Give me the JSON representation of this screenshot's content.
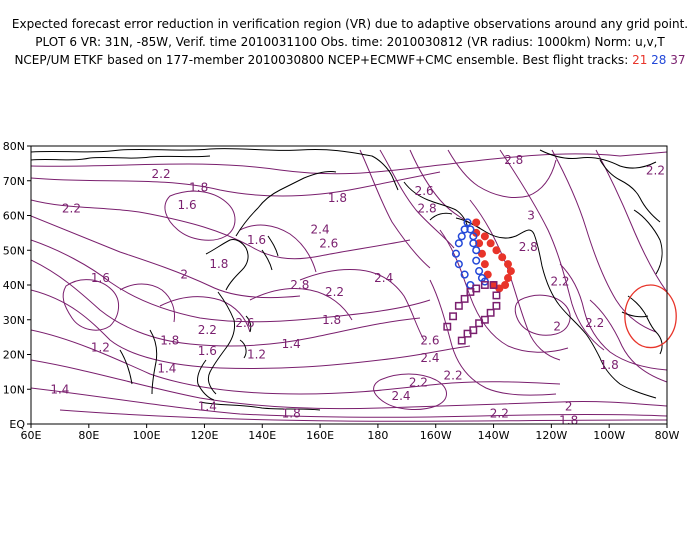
{
  "header": {
    "line1": "Expected forecast error reduction in verification region (VR) due to adaptive observations around any grid point.",
    "line2": "PLOT 6 VR: 31N, -85W, Verif. time 2010031100 Obs. time: 2010030812 (VR radius: 1000km) Norm: u,v,T",
    "line3_prefix": "NCEP/UM ETKF based on 177-member 2010030800 NCEP+ECMWF+CMC ensemble. Best flight tracks:",
    "track1": "21",
    "track2": "28",
    "track3": "37"
  },
  "axes": {
    "lon_labels": [
      "60E",
      "80E",
      "100E",
      "120E",
      "140E",
      "160E",
      "180",
      "160W",
      "140W",
      "120W",
      "100W",
      "80W"
    ],
    "lat_labels": [
      "EQ",
      "10N",
      "20N",
      "30N",
      "40N",
      "50N",
      "60N",
      "70N",
      "80N"
    ]
  },
  "contour_labels": [
    {
      "text": "2.2",
      "lon": 105,
      "lat": 72
    },
    {
      "text": "1.8",
      "lon": 118,
      "lat": 68
    },
    {
      "text": "2.2",
      "lon": 74,
      "lat": 62
    },
    {
      "text": "1.6",
      "lon": 114,
      "lat": 63
    },
    {
      "text": "1.6",
      "lon": 84,
      "lat": 42
    },
    {
      "text": "2",
      "lon": 113,
      "lat": 43
    },
    {
      "text": "1.8",
      "lon": 125,
      "lat": 46
    },
    {
      "text": "1.6",
      "lon": 138,
      "lat": 53
    },
    {
      "text": "2.4",
      "lon": 160,
      "lat": 56
    },
    {
      "text": "2.6",
      "lon": 163,
      "lat": 52
    },
    {
      "text": "2.8",
      "lon": 153,
      "lat": 40
    },
    {
      "text": "1.8",
      "lon": 166,
      "lat": 65
    },
    {
      "text": "2.2",
      "lon": 165,
      "lat": 38
    },
    {
      "text": "2.4",
      "lon": 182,
      "lat": 42
    },
    {
      "text": "1.8",
      "lon": 164,
      "lat": 30
    },
    {
      "text": "2.2",
      "lon": 121,
      "lat": 27
    },
    {
      "text": "2.6",
      "lon": 134,
      "lat": 29
    },
    {
      "text": "1.8",
      "lon": 108,
      "lat": 24
    },
    {
      "text": "1.6",
      "lon": 121,
      "lat": 21
    },
    {
      "text": "1.2",
      "lon": 138,
      "lat": 20
    },
    {
      "text": "1.4",
      "lon": 150,
      "lat": 23
    },
    {
      "text": "1.2",
      "lon": 84,
      "lat": 22
    },
    {
      "text": "1.4",
      "lon": 107,
      "lat": 16
    },
    {
      "text": "1.4",
      "lon": 70,
      "lat": 10
    },
    {
      "text": "1.4",
      "lon": 121,
      "lat": 5
    },
    {
      "text": "1.8",
      "lon": 150,
      "lat": 3
    },
    {
      "text": "2.6",
      "lon": -164,
      "lat": 67
    },
    {
      "text": "2.8",
      "lon": -163,
      "lat": 62
    },
    {
      "text": "2.8",
      "lon": -133,
      "lat": 76
    },
    {
      "text": "3",
      "lon": -127,
      "lat": 60
    },
    {
      "text": "2.8",
      "lon": -128,
      "lat": 51
    },
    {
      "text": "2.2",
      "lon": -117,
      "lat": 41
    },
    {
      "text": "2.2",
      "lon": -105,
      "lat": 29
    },
    {
      "text": "2",
      "lon": -118,
      "lat": 28
    },
    {
      "text": "2.6",
      "lon": -162,
      "lat": 24
    },
    {
      "text": "2.4",
      "lon": -162,
      "lat": 19
    },
    {
      "text": "2.2",
      "lon": -154,
      "lat": 14
    },
    {
      "text": "2.2",
      "lon": -166,
      "lat": 12
    },
    {
      "text": "2.4",
      "lon": -172,
      "lat": 8
    },
    {
      "text": "2.2",
      "lon": -138,
      "lat": 3
    },
    {
      "text": "2",
      "lon": -114,
      "lat": 5
    },
    {
      "text": "1.8",
      "lon": -114,
      "lat": 1
    },
    {
      "text": "1.8",
      "lon": -100,
      "lat": 17
    },
    {
      "text": "2.2",
      "lon": -84,
      "lat": 73
    }
  ],
  "flight_tracks": [
    {
      "label": "21",
      "color": "#e8342a",
      "marker": "circle-filled",
      "points": [
        [
          -140,
          40
        ],
        [
          -142,
          43
        ],
        [
          -143,
          46
        ],
        [
          -144,
          49
        ],
        [
          -145,
          52
        ],
        [
          -146,
          55
        ],
        [
          -146,
          58
        ],
        [
          -143,
          54
        ],
        [
          -141,
          52
        ],
        [
          -139,
          50
        ],
        [
          -137,
          48
        ],
        [
          -135,
          46
        ],
        [
          -134,
          44
        ],
        [
          -135,
          42
        ],
        [
          -136,
          40
        ],
        [
          -138,
          39
        ]
      ]
    },
    {
      "label": "28",
      "color": "#2348d8",
      "marker": "circle-open",
      "points": [
        [
          -148,
          40
        ],
        [
          -150,
          43
        ],
        [
          -152,
          46
        ],
        [
          -153,
          49
        ],
        [
          -152,
          52
        ],
        [
          -151,
          54
        ],
        [
          -150,
          56
        ],
        [
          -149,
          58
        ],
        [
          -148,
          56
        ],
        [
          -147,
          54
        ],
        [
          -147,
          52
        ],
        [
          -146,
          50
        ],
        [
          -146,
          47
        ],
        [
          -145,
          44
        ],
        [
          -144,
          42
        ],
        [
          -143,
          41
        ]
      ]
    },
    {
      "label": "37",
      "color": "#7a1f6e",
      "marker": "square-open",
      "points": [
        [
          -156,
          28
        ],
        [
          -154,
          31
        ],
        [
          -152,
          34
        ],
        [
          -150,
          36
        ],
        [
          -148,
          38
        ],
        [
          -146,
          39
        ],
        [
          -143,
          40
        ],
        [
          -140,
          40
        ],
        [
          -139,
          37
        ],
        [
          -139,
          34
        ],
        [
          -141,
          32
        ],
        [
          -143,
          30
        ],
        [
          -145,
          29
        ],
        [
          -147,
          27
        ],
        [
          -149,
          26
        ],
        [
          -151,
          24
        ]
      ]
    }
  ],
  "verification_region": {
    "lat": 31,
    "lon": -85,
    "radius_km": 1000,
    "color": "#e8342a"
  },
  "colors": {
    "contour": "#7a1f6e",
    "coast": "#000000",
    "red": "#e8342a",
    "blue": "#2348d8",
    "purple": "#7a1f6e"
  }
}
